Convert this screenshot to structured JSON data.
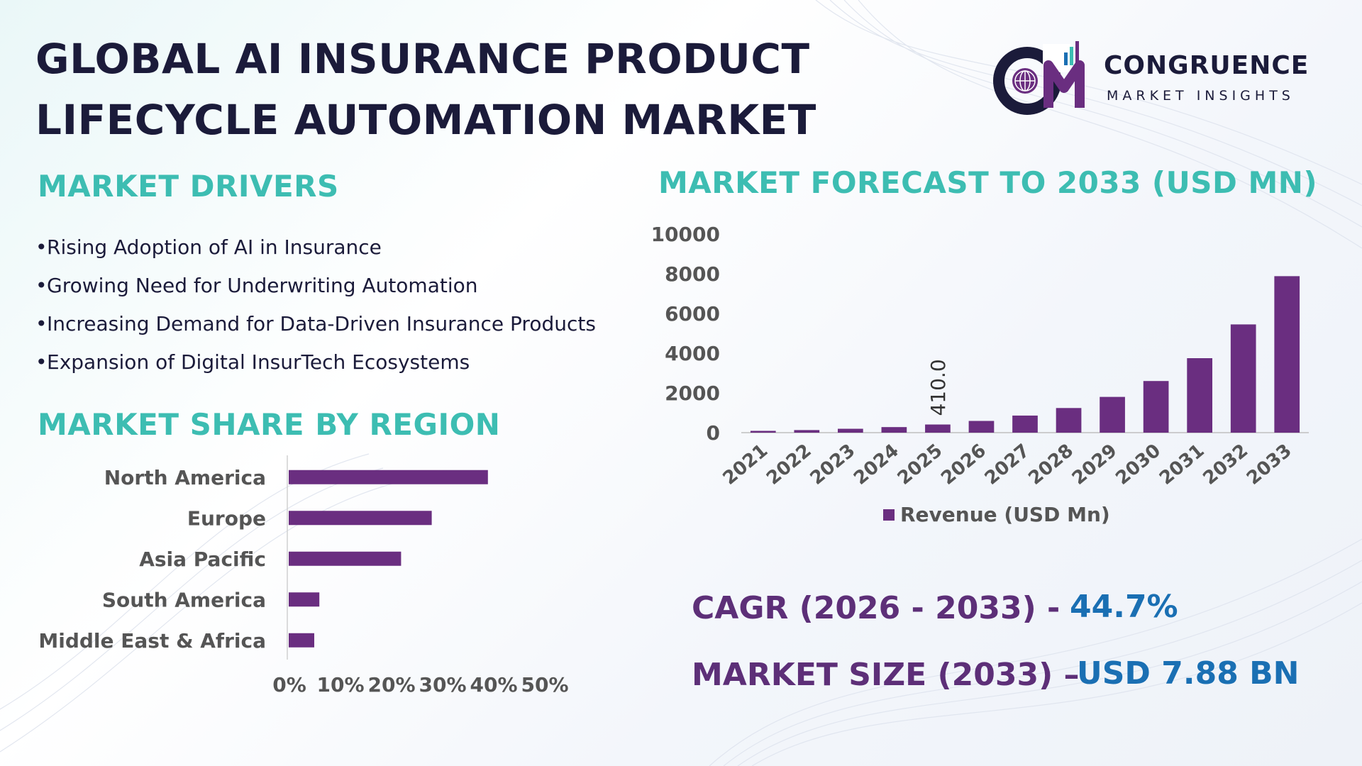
{
  "title_lines": [
    "GLOBAL AI INSURANCE PRODUCT",
    "LIFECYCLE AUTOMATION MARKET"
  ],
  "logo": {
    "name": "CONGRUENCE",
    "subtitle": "MARKET INSIGHTS",
    "mark_letters": "CM"
  },
  "colors": {
    "bar": "#6a2e80",
    "teal": "#3dbdb2",
    "navy": "#1b1b3a",
    "purple_text": "#5d2f78",
    "blue_text": "#1a6fb3",
    "axis_text": "#555555"
  },
  "drivers": {
    "title": "MARKET DRIVERS",
    "items": [
      "Rising Adoption of AI in Insurance",
      "Growing Need for Underwriting Automation",
      "Increasing Demand for Data-Driven Insurance Products",
      "Expansion of Digital InsurTech Ecosystems"
    ]
  },
  "stats": {
    "cagr_label": "CAGR (2026 - 2033) -",
    "cagr_value": "44.7%",
    "size_label": "MARKET SIZE (2033) –",
    "size_value": "USD 7.88 BN"
  },
  "chart_data": [
    {
      "type": "bar",
      "title": "MARKET FORECAST TO 2033 (USD MN)",
      "categories": [
        "2021",
        "2022",
        "2023",
        "2024",
        "2025",
        "2026",
        "2027",
        "2028",
        "2029",
        "2030",
        "2031",
        "2032",
        "2033"
      ],
      "series": [
        {
          "name": "Revenue (USD Mn)",
          "values": [
            90,
            130,
            195,
            280,
            410,
            590,
            860,
            1240,
            1800,
            2600,
            3750,
            5450,
            7880
          ]
        }
      ],
      "data_labels": [
        {
          "category": "2025",
          "text": "410.0"
        }
      ],
      "y_ticks": [
        0,
        2000,
        4000,
        6000,
        8000,
        10000
      ],
      "ylim": [
        0,
        10000
      ],
      "grid": false,
      "legend": "bottom"
    },
    {
      "type": "bar",
      "orientation": "horizontal",
      "title": "MARKET SHARE BY REGION",
      "categories": [
        "North America",
        "Europe",
        "Asia Pacific",
        "South America",
        "Middle East & Africa"
      ],
      "values": [
        39,
        28,
        22,
        6,
        5
      ],
      "x_ticks": [
        "0%",
        "10%",
        "20%",
        "30%",
        "40%",
        "50%"
      ],
      "xlim": [
        0,
        50
      ],
      "grid": false
    }
  ]
}
